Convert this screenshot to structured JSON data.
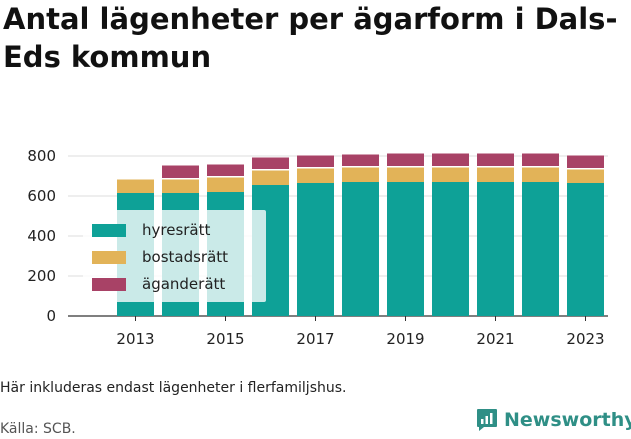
{
  "title": "Antal lägenheter per ägarform i Dals-Eds kommun",
  "note": "Här inkluderas endast lägenheter i flerfamiljshus.",
  "source": "Källa: SCB.",
  "brand": {
    "name": "Newsworthy",
    "icon": "newsworthy-logo-icon",
    "color": "#2f8f86"
  },
  "chart_data": {
    "type": "bar",
    "stacked": true,
    "categories": [
      "2012",
      "2013",
      "2014",
      "2015",
      "2016",
      "2017",
      "2018",
      "2019",
      "2020",
      "2021",
      "2022",
      "2023"
    ],
    "x_tick_labels": [
      "2013",
      "2015",
      "2017",
      "2019",
      "2021",
      "2023"
    ],
    "series": [
      {
        "name": "hyresrätt",
        "color": "#0ea197",
        "values": [
          null,
          615,
          615,
          620,
          655,
          665,
          670,
          670,
          670,
          670,
          670,
          665
        ]
      },
      {
        "name": "bostadsrätt",
        "color": "#e2b358",
        "values": [
          null,
          75,
          75,
          80,
          80,
          80,
          80,
          80,
          80,
          80,
          80,
          75
        ]
      },
      {
        "name": "äganderätt",
        "color": "#a84266",
        "values": [
          null,
          0,
          70,
          65,
          65,
          65,
          65,
          70,
          70,
          70,
          70,
          70
        ]
      }
    ],
    "y_ticks": [
      0,
      200,
      400,
      600,
      800
    ],
    "ylim": [
      0,
      880
    ],
    "grid": true,
    "legend_position": "middle-left"
  }
}
